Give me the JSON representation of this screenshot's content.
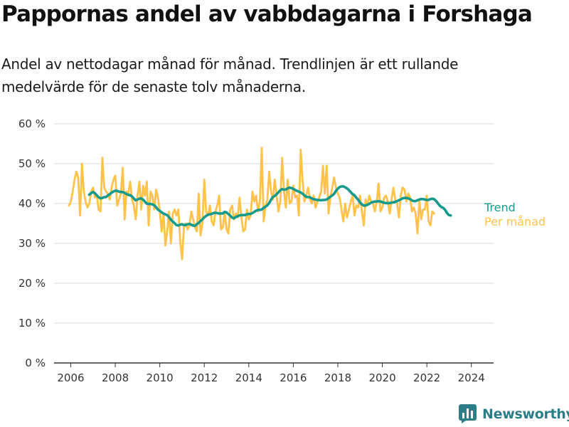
{
  "title": "Pappornas andel av vabbdagarna i Forshaga",
  "subtitle": "Andel av nettodagar månad för månad. Trendlinjen är ett rullande medelvärde för de senaste tolv månaderna.",
  "brand": {
    "name": "Newsworthy",
    "icon": "newsworthy-logo-icon",
    "color": "#2c7d86"
  },
  "colors": {
    "trend": "#159a8c",
    "monthly": "#ffc24b",
    "grid": "#d9d9d9",
    "axis": "#333333"
  },
  "chart_data": {
    "type": "line",
    "xlabel": "",
    "ylabel": "",
    "x_ticks": [
      "2006",
      "2008",
      "2010",
      "2012",
      "2014",
      "2016",
      "2018",
      "2020",
      "2022",
      "2024"
    ],
    "y_ticks": [
      "0 %",
      "10 %",
      "20 %",
      "30 %",
      "40 %",
      "50 %",
      "60 %"
    ],
    "xlim": [
      2005.25,
      2025.0
    ],
    "ylim": [
      0,
      60
    ],
    "grid": true,
    "legend": "right, inline at series ends",
    "series": [
      {
        "name": "Trend",
        "color": "#159a8c",
        "x_start": 2006.83,
        "step": 0.0833,
        "values": [
          42.2,
          42.6,
          42.9,
          42.6,
          42.1,
          41.6,
          41.3,
          41.4,
          41.6,
          41.6,
          42.0,
          42.3,
          42.7,
          43.0,
          43.2,
          43.2,
          43.0,
          42.9,
          42.9,
          42.7,
          42.4,
          42.2,
          42.1,
          41.8,
          41.3,
          40.8,
          41.0,
          41.2,
          41.3,
          41.0,
          40.5,
          40.0,
          39.9,
          39.9,
          39.8,
          39.6,
          39.1,
          38.5,
          38.2,
          37.8,
          37.5,
          37.3,
          37.1,
          36.6,
          36.0,
          35.5,
          35.1,
          34.6,
          34.5,
          34.7,
          34.8,
          34.6,
          34.6,
          34.8,
          34.9,
          34.7,
          34.5,
          34.4,
          34.8,
          35.1,
          35.6,
          36.0,
          36.5,
          36.9,
          37.2,
          37.3,
          37.4,
          37.6,
          37.7,
          37.6,
          37.5,
          37.5,
          37.5,
          37.9,
          37.8,
          37.4,
          37.0,
          36.5,
          36.3,
          36.6,
          36.8,
          37.0,
          37.1,
          37.1,
          37.1,
          37.3,
          37.4,
          37.4,
          37.6,
          37.9,
          38.2,
          38.4,
          38.4,
          38.5,
          38.9,
          39.2,
          39.5,
          40.1,
          40.9,
          41.6,
          41.9,
          42.3,
          42.8,
          43.3,
          43.6,
          43.5,
          43.5,
          43.8,
          44.0,
          43.9,
          43.7,
          43.4,
          43.2,
          43.0,
          42.8,
          42.5,
          42.1,
          41.7,
          41.6,
          41.6,
          41.3,
          41.1,
          41.0,
          40.9,
          40.9,
          40.8,
          40.9,
          40.9,
          41.0,
          41.3,
          41.7,
          42.0,
          42.4,
          43.1,
          43.7,
          44.1,
          44.3,
          44.3,
          44.1,
          43.8,
          43.4,
          42.9,
          42.4,
          42.1,
          41.5,
          41.0,
          40.3,
          39.8,
          39.5,
          39.5,
          39.7,
          39.9,
          40.2,
          40.4,
          40.5,
          40.5,
          40.6,
          40.5,
          40.4,
          40.2,
          40.1,
          40.1,
          40.1,
          40.2,
          40.3,
          40.4,
          40.6,
          40.8,
          41.0,
          41.3,
          41.4,
          41.4,
          41.3,
          41.1,
          40.8,
          40.6,
          40.6,
          40.8,
          41.0,
          41.1,
          41.1,
          41.0,
          40.9,
          40.9,
          41.1,
          41.2,
          41.1,
          40.7,
          40.1,
          39.5,
          39.1,
          38.9,
          38.4,
          37.6,
          37.1,
          37.0
        ]
      },
      {
        "name": "Per månad",
        "color": "#ffc24b",
        "x_start": 2005.92,
        "step": 0.0833,
        "values": [
          39.5,
          40.5,
          43.0,
          46.0,
          48.0,
          46.5,
          37.0,
          50.0,
          43.0,
          40.5,
          39.0,
          40.0,
          43.0,
          44.0,
          41.5,
          42.0,
          38.5,
          38.0,
          51.5,
          44.0,
          43.0,
          42.5,
          41.0,
          44.0,
          46.0,
          47.0,
          39.5,
          41.0,
          42.5,
          49.0,
          36.0,
          43.0,
          42.5,
          45.5,
          41.0,
          39.5,
          36.0,
          42.0,
          45.5,
          38.5,
          44.5,
          42.0,
          45.5,
          34.5,
          43.0,
          42.0,
          38.5,
          43.5,
          41.5,
          38.0,
          33.0,
          37.5,
          29.5,
          33.0,
          38.0,
          30.0,
          37.5,
          38.5,
          37.0,
          38.5,
          30.5,
          26.0,
          34.0,
          35.0,
          33.5,
          34.5,
          38.0,
          36.0,
          34.0,
          33.0,
          42.5,
          32.0,
          35.0,
          46.0,
          38.0,
          37.0,
          39.5,
          35.5,
          34.5,
          38.0,
          39.5,
          42.0,
          33.5,
          34.0,
          38.0,
          33.5,
          32.5,
          38.5,
          39.5,
          36.0,
          37.5,
          36.5,
          41.5,
          36.5,
          33.0,
          33.5,
          38.5,
          36.0,
          37.0,
          43.0,
          40.5,
          42.0,
          38.0,
          40.5,
          54.0,
          35.5,
          39.5,
          41.0,
          48.0,
          43.0,
          41.0,
          46.0,
          42.0,
          38.0,
          40.5,
          51.5,
          43.0,
          39.0,
          46.0,
          40.0,
          40.5,
          44.5,
          41.5,
          42.0,
          37.0,
          53.5,
          46.0,
          40.5,
          42.0,
          44.0,
          41.0,
          40.0,
          42.0,
          39.0,
          40.5,
          41.5,
          43.0,
          49.5,
          42.5,
          49.5,
          37.5,
          41.5,
          44.0,
          46.5,
          44.0,
          42.5,
          41.5,
          38.5,
          35.5,
          40.0,
          36.5,
          38.5,
          40.5,
          42.0,
          37.0,
          39.5,
          39.0,
          42.0,
          38.0,
          34.5,
          41.0,
          39.5,
          42.0,
          40.5,
          40.0,
          38.0,
          40.5,
          45.0,
          38.0,
          39.0,
          41.5,
          42.0,
          40.5,
          37.5,
          41.0,
          44.0,
          41.0,
          40.0,
          36.5,
          42.0,
          44.0,
          43.5,
          40.5,
          42.5,
          41.5,
          38.0,
          39.0,
          37.5,
          32.5,
          41.0,
          36.0,
          38.5,
          38.5,
          42.0,
          35.5,
          34.5,
          38.0,
          37.5
        ]
      }
    ]
  }
}
